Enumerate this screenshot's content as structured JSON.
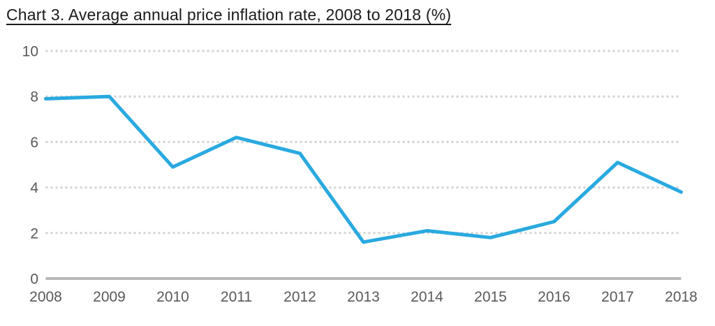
{
  "title": {
    "text": "Chart 3. Average annual price inflation rate, 2008 to 2018 (%)"
  },
  "chart_data": {
    "type": "line",
    "title": "Chart 3. Average annual price inflation rate, 2008 to 2018 (%)",
    "categories": [
      "2008",
      "2009",
      "2010",
      "2011",
      "2012",
      "2013",
      "2014",
      "2015",
      "2016",
      "2017",
      "2018"
    ],
    "values": [
      7.9,
      8.0,
      4.9,
      6.2,
      5.5,
      1.6,
      2.1,
      1.8,
      2.5,
      5.1,
      3.8
    ],
    "series_name": "Average annual price inflation rate (%)",
    "xlabel": "",
    "ylabel": "",
    "ylim": [
      0,
      10
    ],
    "yticks": [
      "0",
      "2",
      "4",
      "6",
      "8",
      "10"
    ],
    "grid": "horizontal-dotted",
    "legend": "none",
    "colors": {
      "line": "#29a9e0",
      "gridline": "#d2d2d2",
      "axis_line": "#b8b8b8",
      "tick_label": "#595959",
      "title_text": "#1a1a1a"
    }
  }
}
